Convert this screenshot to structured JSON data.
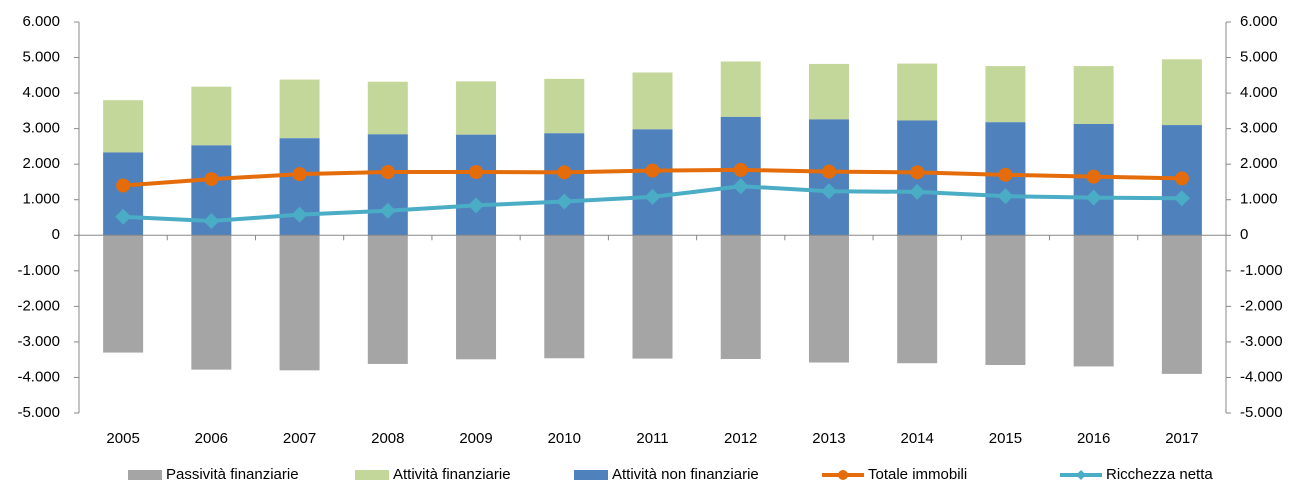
{
  "chart_data": {
    "type": "bar",
    "categories": [
      "2005",
      "2006",
      "2007",
      "2008",
      "2009",
      "2010",
      "2011",
      "2012",
      "2013",
      "2014",
      "2015",
      "2016",
      "2017"
    ],
    "series": [
      {
        "name": "Passività finanziarie",
        "color": "#a5a5a5",
        "kind": "bar",
        "values": [
          -3300,
          -3780,
          -3800,
          -3620,
          -3490,
          -3460,
          -3470,
          -3480,
          -3580,
          -3600,
          -3650,
          -3690,
          -3900
        ]
      },
      {
        "name": "Attività finanziarie",
        "color": "#c4d79b",
        "kind": "bar",
        "stack_on": 2,
        "values": [
          1470,
          1650,
          1650,
          1480,
          1500,
          1530,
          1600,
          1560,
          1560,
          1600,
          1580,
          1630,
          1850
        ]
      },
      {
        "name": "Attività non finanziarie",
        "color": "#4f81bd",
        "kind": "bar",
        "values": [
          2330,
          2530,
          2730,
          2840,
          2830,
          2870,
          2980,
          3330,
          3260,
          3230,
          3180,
          3130,
          3100
        ]
      },
      {
        "name": "Totale immobili",
        "color": "#e46c0a",
        "kind": "line",
        "marker": "circle",
        "values": [
          1400,
          1580,
          1720,
          1780,
          1780,
          1770,
          1820,
          1840,
          1790,
          1770,
          1700,
          1650,
          1600
        ]
      },
      {
        "name": "Ricchezza netta",
        "color": "#4bacc6",
        "kind": "line",
        "marker": "diamond",
        "values": [
          520,
          400,
          580,
          690,
          840,
          950,
          1080,
          1380,
          1240,
          1220,
          1100,
          1060,
          1040
        ]
      }
    ],
    "ylim": [
      -5000,
      6000
    ],
    "yticks": [
      {
        "value": -5000,
        "label": "-5.000"
      },
      {
        "value": -4000,
        "label": "-4.000"
      },
      {
        "value": -3000,
        "label": "-3.000"
      },
      {
        "value": -2000,
        "label": "-2.000"
      },
      {
        "value": -1000,
        "label": "-1.000"
      },
      0,
      {
        "value": 1000,
        "label": "1.000"
      },
      {
        "value": 2000,
        "label": "2.000"
      },
      {
        "value": 3000,
        "label": "3.000"
      },
      {
        "value": 4000,
        "label": "4.000"
      },
      {
        "value": 5000,
        "label": "5.000"
      },
      {
        "value": 6000,
        "label": "6.000"
      }
    ],
    "y2lim": [
      -5000,
      6000
    ],
    "y2ticks": [
      {
        "value": -5000,
        "label": "-5.000"
      },
      {
        "value": -4000,
        "label": "-4.000"
      },
      {
        "value": -3000,
        "label": "-3.000"
      },
      {
        "value": -2000,
        "label": "-2.000"
      },
      {
        "value": -1000,
        "label": "-1.000"
      },
      0,
      {
        "value": 1000,
        "label": "1.000"
      },
      {
        "value": 2000,
        "label": "2.000"
      },
      {
        "value": 3000,
        "label": "3.000"
      },
      {
        "value": 4000,
        "label": "4.000"
      },
      {
        "value": 5000,
        "label": "5.000"
      },
      {
        "value": 6000,
        "label": "6.000"
      }
    ],
    "legend": "bottom"
  }
}
